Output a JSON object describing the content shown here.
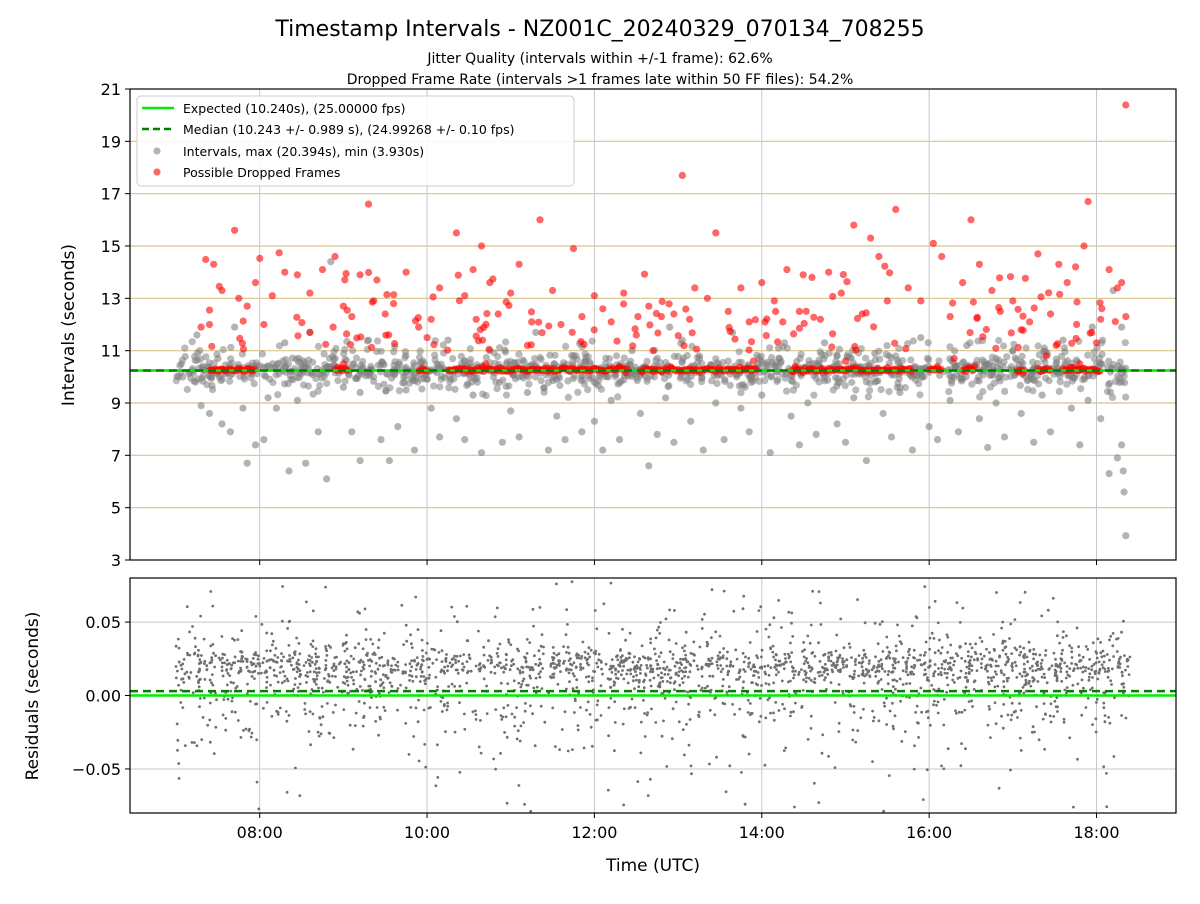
{
  "figure": {
    "title": "Timestamp Intervals - NZ001C_20240329_070134_708255",
    "subtitle_1": "Jitter Quality (intervals within +/-1 frame): 62.6%",
    "subtitle_2": "Dropped Frame Rate (intervals >1 frames late within 50 FF files): 54.2%"
  },
  "colors": {
    "expected": "#00ee00",
    "median": "#007f00",
    "intervals": "#808080",
    "dropped": "#ff0000",
    "hgrid_top": "#d8c48a",
    "vgrid": "#c8c8c8"
  },
  "legend": {
    "expected": "Expected (10.240s), (25.00000 fps)",
    "median": "Median (10.243 +/- 0.989 s), (24.99268 +/- 0.10 fps)",
    "intervals": "Intervals, max (20.394s), min (3.930s)",
    "dropped": "Possible Dropped Frames"
  },
  "chart_data": [
    {
      "type": "scatter",
      "ylabel": "Intervals (seconds)",
      "ylim": [
        3,
        21
      ],
      "yticks": [
        "3",
        "5",
        "7",
        "9",
        "11",
        "13",
        "15",
        "17",
        "19",
        "21"
      ],
      "xlim": [
        6.45,
        18.95
      ],
      "x_unit": "hours UTC",
      "grid": true,
      "legend_position": "top-left",
      "expected_interval": 10.24,
      "median_interval": 10.243,
      "series": [
        {
          "name": "Intervals, max (20.394s), min (3.930s)",
          "points": [
            [
              7.25,
              11.6
            ],
            [
              7.3,
              8.9
            ],
            [
              7.4,
              8.6
            ],
            [
              7.55,
              8.2
            ],
            [
              7.65,
              7.9
            ],
            [
              7.7,
              11.9
            ],
            [
              7.8,
              8.8
            ],
            [
              7.85,
              6.7
            ],
            [
              7.95,
              7.4
            ],
            [
              8.05,
              7.6
            ],
            [
              8.1,
              9.2
            ],
            [
              8.2,
              8.8
            ],
            [
              8.3,
              11.3
            ],
            [
              8.35,
              6.4
            ],
            [
              8.45,
              9.1
            ],
            [
              8.55,
              6.7
            ],
            [
              8.6,
              11.7
            ],
            [
              8.7,
              7.9
            ],
            [
              8.8,
              6.1
            ],
            [
              8.85,
              14.4
            ],
            [
              8.9,
              10.7
            ],
            [
              9.0,
              9.6
            ],
            [
              9.1,
              7.9
            ],
            [
              9.2,
              6.8
            ],
            [
              9.3,
              11.4
            ],
            [
              9.45,
              7.6
            ],
            [
              9.55,
              6.8
            ],
            [
              9.65,
              8.1
            ],
            [
              9.75,
              9.5
            ],
            [
              9.85,
              7.2
            ],
            [
              9.95,
              10.6
            ],
            [
              10.05,
              8.8
            ],
            [
              10.15,
              7.7
            ],
            [
              10.25,
              11.4
            ],
            [
              10.35,
              8.4
            ],
            [
              10.45,
              7.6
            ],
            [
              10.55,
              9.3
            ],
            [
              10.65,
              7.1
            ],
            [
              10.75,
              11.0
            ],
            [
              10.9,
              7.5
            ],
            [
              11.0,
              8.7
            ],
            [
              11.1,
              7.7
            ],
            [
              11.2,
              9.4
            ],
            [
              11.3,
              11.7
            ],
            [
              11.45,
              7.2
            ],
            [
              11.55,
              8.5
            ],
            [
              11.65,
              7.6
            ],
            [
              11.75,
              10.8
            ],
            [
              11.85,
              7.9
            ],
            [
              12.0,
              8.3
            ],
            [
              12.1,
              7.2
            ],
            [
              12.2,
              9.1
            ],
            [
              12.3,
              7.6
            ],
            [
              12.45,
              11.0
            ],
            [
              12.55,
              8.6
            ],
            [
              12.65,
              6.6
            ],
            [
              12.75,
              7.8
            ],
            [
              12.85,
              9.2
            ],
            [
              12.95,
              7.5
            ],
            [
              13.05,
              11.4
            ],
            [
              13.15,
              8.3
            ],
            [
              13.3,
              7.2
            ],
            [
              13.45,
              9.0
            ],
            [
              13.55,
              7.6
            ],
            [
              13.65,
              11.7
            ],
            [
              13.75,
              8.8
            ],
            [
              13.85,
              7.9
            ],
            [
              14.0,
              9.3
            ],
            [
              14.1,
              7.1
            ],
            [
              14.2,
              11.1
            ],
            [
              14.35,
              8.5
            ],
            [
              14.45,
              7.4
            ],
            [
              14.55,
              9.0
            ],
            [
              14.65,
              7.8
            ],
            [
              14.75,
              11.3
            ],
            [
              14.9,
              8.2
            ],
            [
              15.0,
              7.5
            ],
            [
              15.1,
              9.2
            ],
            [
              15.25,
              6.8
            ],
            [
              15.35,
              10.9
            ],
            [
              15.45,
              8.6
            ],
            [
              15.55,
              7.7
            ],
            [
              15.65,
              9.4
            ],
            [
              15.8,
              7.2
            ],
            [
              15.9,
              11.5
            ],
            [
              16.0,
              8.1
            ],
            [
              16.1,
              7.6
            ],
            [
              16.25,
              9.1
            ],
            [
              16.35,
              7.9
            ],
            [
              16.45,
              11.2
            ],
            [
              16.6,
              8.4
            ],
            [
              16.7,
              7.3
            ],
            [
              16.8,
              9.0
            ],
            [
              16.9,
              7.7
            ],
            [
              17.0,
              11.0
            ],
            [
              17.1,
              8.6
            ],
            [
              17.25,
              7.5
            ],
            [
              17.35,
              9.3
            ],
            [
              17.45,
              7.9
            ],
            [
              17.6,
              11.4
            ],
            [
              17.7,
              8.8
            ],
            [
              17.8,
              7.4
            ],
            [
              17.9,
              9.1
            ],
            [
              18.05,
              8.4
            ],
            [
              18.15,
              6.3
            ],
            [
              18.2,
              13.3
            ],
            [
              18.25,
              6.9
            ],
            [
              18.3,
              7.4
            ],
            [
              18.33,
              5.6
            ],
            [
              18.35,
              3.93
            ],
            [
              18.32,
              6.4
            ],
            [
              18.3,
              11.9
            ],
            [
              18.05,
              10.5
            ],
            [
              17.95,
              11.9
            ],
            [
              7.5,
              10.7
            ],
            [
              9.2,
              9.4
            ],
            [
              11.9,
              10.6
            ],
            [
              14.9,
              10.8
            ],
            [
              16.8,
              10.7
            ],
            [
              12.9,
              11.9
            ]
          ]
        },
        {
          "name": "Possible Dropped Frames",
          "points": [
            [
              7.3,
              11.9
            ],
            [
              7.4,
              12.0
            ],
            [
              7.45,
              14.3
            ],
            [
              7.55,
              13.3
            ],
            [
              7.7,
              15.6
            ],
            [
              7.75,
              13.0
            ],
            [
              7.85,
              12.7
            ],
            [
              7.95,
              13.6
            ],
            [
              8.05,
              12.0
            ],
            [
              8.15,
              13.1
            ],
            [
              8.3,
              14.0
            ],
            [
              8.45,
              13.9
            ],
            [
              8.6,
              13.2
            ],
            [
              8.75,
              14.1
            ],
            [
              8.9,
              14.6
            ],
            [
              9.0,
              12.7
            ],
            [
              9.1,
              12.3
            ],
            [
              9.2,
              13.9
            ],
            [
              9.3,
              16.6
            ],
            [
              9.4,
              13.7
            ],
            [
              9.5,
              12.4
            ],
            [
              9.6,
              12.8
            ],
            [
              9.75,
              14.0
            ],
            [
              9.9,
              11.9
            ],
            [
              10.05,
              12.2
            ],
            [
              10.15,
              13.4
            ],
            [
              10.35,
              15.5
            ],
            [
              10.45,
              13.1
            ],
            [
              10.55,
              14.1
            ],
            [
              10.65,
              15.0
            ],
            [
              10.75,
              13.6
            ],
            [
              10.85,
              12.4
            ],
            [
              11.0,
              13.2
            ],
            [
              11.1,
              14.3
            ],
            [
              11.25,
              12.1
            ],
            [
              11.35,
              16.0
            ],
            [
              11.5,
              13.3
            ],
            [
              11.6,
              12.0
            ],
            [
              11.75,
              14.9
            ],
            [
              11.85,
              12.3
            ],
            [
              12.0,
              13.1
            ],
            [
              12.1,
              12.6
            ],
            [
              12.2,
              12.1
            ],
            [
              12.35,
              13.2
            ],
            [
              12.5,
              11.6
            ],
            [
              12.65,
              12.7
            ],
            [
              12.8,
              12.3
            ],
            [
              12.95,
              12.4
            ],
            [
              13.05,
              17.7
            ],
            [
              13.2,
              13.4
            ],
            [
              13.35,
              13.0
            ],
            [
              13.45,
              15.5
            ],
            [
              13.6,
              12.5
            ],
            [
              13.75,
              13.4
            ],
            [
              13.85,
              12.1
            ],
            [
              14.0,
              13.6
            ],
            [
              14.15,
              12.9
            ],
            [
              14.3,
              14.1
            ],
            [
              14.45,
              12.5
            ],
            [
              14.6,
              13.8
            ],
            [
              14.7,
              12.2
            ],
            [
              14.8,
              14.0
            ],
            [
              14.95,
              13.2
            ],
            [
              15.1,
              15.8
            ],
            [
              15.2,
              12.4
            ],
            [
              15.3,
              15.3
            ],
            [
              15.4,
              14.6
            ],
            [
              15.5,
              12.9
            ],
            [
              15.6,
              16.4
            ],
            [
              15.75,
              13.4
            ],
            [
              15.9,
              12.9
            ],
            [
              16.05,
              15.1
            ],
            [
              16.15,
              14.6
            ],
            [
              16.25,
              12.3
            ],
            [
              16.4,
              13.6
            ],
            [
              16.5,
              16.0
            ],
            [
              16.6,
              14.3
            ],
            [
              16.75,
              13.3
            ],
            [
              16.85,
              12.5
            ],
            [
              17.0,
              12.9
            ],
            [
              17.1,
              11.8
            ],
            [
              17.2,
              12.1
            ],
            [
              17.3,
              14.7
            ],
            [
              17.45,
              12.4
            ],
            [
              17.55,
              14.3
            ],
            [
              17.65,
              13.6
            ],
            [
              17.75,
              14.2
            ],
            [
              17.85,
              15.0
            ],
            [
              17.9,
              16.7
            ],
            [
              18.0,
              11.3
            ],
            [
              18.05,
              12.2
            ],
            [
              18.15,
              14.1
            ],
            [
              18.25,
              13.4
            ],
            [
              18.3,
              13.6
            ],
            [
              18.35,
              20.39
            ],
            [
              18.35,
              12.3
            ],
            [
              8.6,
              11.7
            ],
            [
              10.0,
              11.5
            ],
            [
              11.2,
              11.2
            ],
            [
              12.7,
              11.0
            ],
            [
              13.9,
              10.6
            ],
            [
              15.0,
              10.6
            ],
            [
              16.3,
              10.7
            ],
            [
              17.4,
              10.8
            ],
            [
              9.0,
              10.5
            ],
            [
              10.7,
              10.5
            ],
            [
              12.3,
              10.4
            ],
            [
              14.4,
              10.4
            ],
            [
              16.1,
              10.4
            ],
            [
              17.8,
              10.5
            ]
          ]
        }
      ],
      "dense_band": {
        "name": "Possible Dropped Frames",
        "y": 10.27,
        "segments": [
          [
            7.4,
            7.95
          ],
          [
            8.9,
            9.05
          ],
          [
            9.9,
            10.0
          ],
          [
            10.25,
            12.4
          ],
          [
            12.55,
            13.95
          ],
          [
            14.35,
            15.8
          ],
          [
            16.0,
            16.15
          ],
          [
            16.4,
            16.55
          ],
          [
            17.05,
            17.15
          ],
          [
            17.3,
            17.45
          ],
          [
            17.6,
            18.05
          ]
        ]
      }
    },
    {
      "type": "scatter",
      "xlabel": "Time (UTC)",
      "ylabel": "Residuals (seconds)",
      "ylim": [
        -0.08,
        0.08
      ],
      "yticks": [
        "0.05",
        "0.00",
        "−0.05"
      ],
      "xticks": [
        "08:00",
        "10:00",
        "12:00",
        "14:00",
        "16:00",
        "18:00"
      ],
      "xlim": [
        6.45,
        18.95
      ],
      "x_unit": "hours UTC",
      "grid": true,
      "expected_residual": 0.0,
      "median_residual": 0.003,
      "residual_band": {
        "core": [
          0.015,
          0.028
        ],
        "spread": [
          -0.035,
          0.06
        ],
        "outliers": [
          -0.078,
          0.078
        ]
      }
    }
  ]
}
